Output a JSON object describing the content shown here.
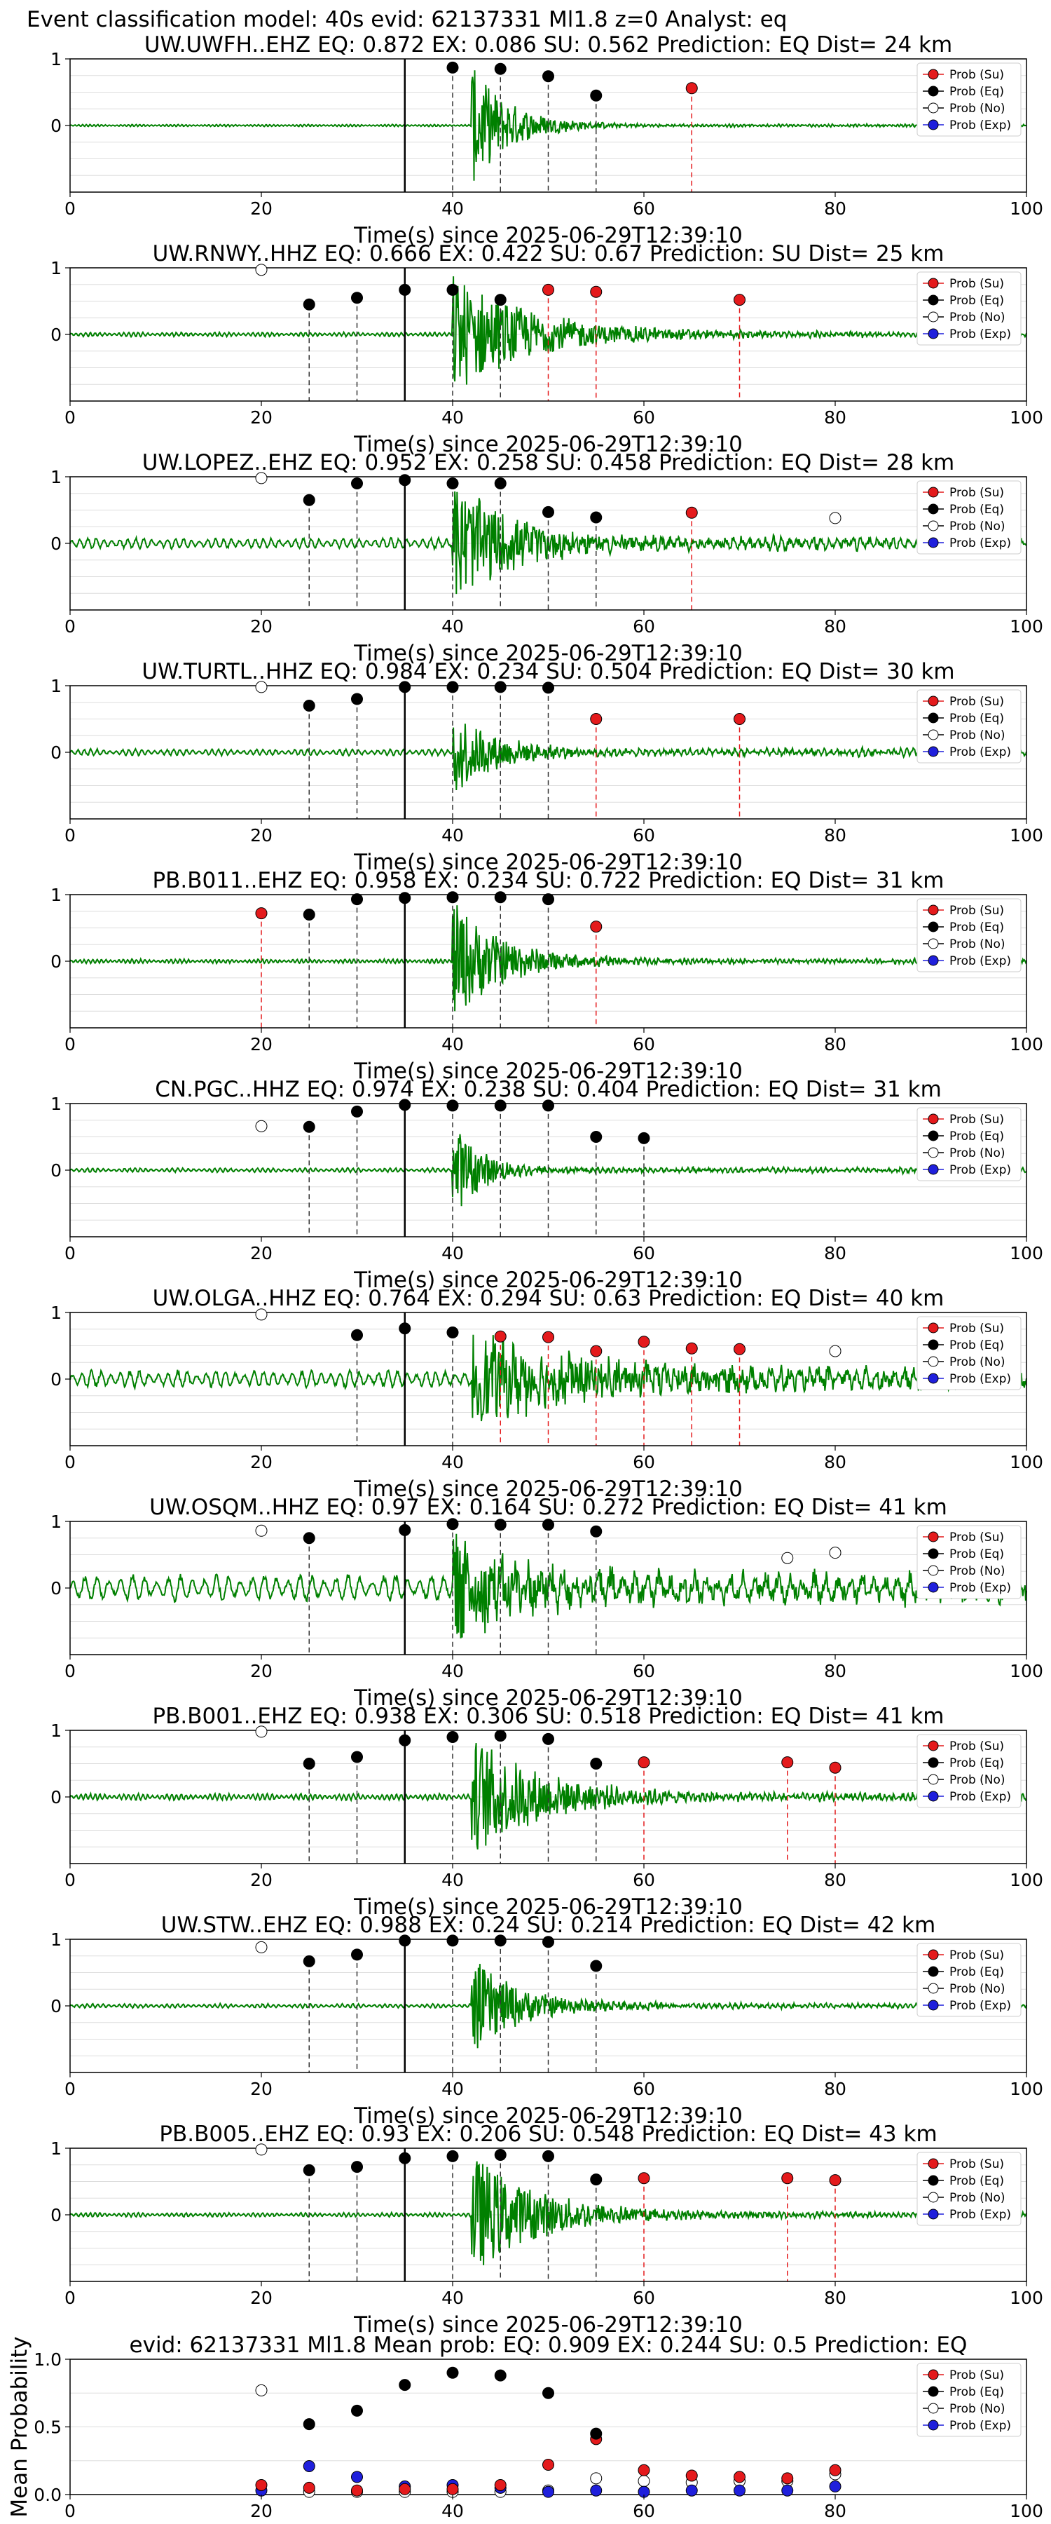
{
  "suptitle": "Event classification model: 40s evid: 62137331 Ml1.8 z=0 Analyst: eq",
  "colors": {
    "su": "#e41a1c",
    "eq": "#000000",
    "no": "#ffffff",
    "exp": "#1f1fdc",
    "waveform": "#008000",
    "grid": "#dddddd"
  },
  "legend_labels": [
    "Prob (Su)",
    "Prob (Eq)",
    "Prob (No)",
    "Prob (Exp)"
  ],
  "chart_data": [
    {
      "type": "line",
      "title": "UW.UWFH..EHZ   EQ: 0.872  EX: 0.086  SU: 0.562   Prediction: EQ    Dist= 24 km",
      "xlabel": "Time(s) since 2025-06-29T12:39:10",
      "xlim": [
        0,
        100
      ],
      "ylim": [
        -1,
        1
      ],
      "xticks": [
        "0",
        "20",
        "40",
        "60",
        "80",
        "100"
      ],
      "yticks": [
        "1",
        "0"
      ],
      "grid": true,
      "legend": "right",
      "p_arrival": 35,
      "signal_onset": 42,
      "noise_amp": 0.01,
      "signal_amp": 0.9,
      "decay": 4,
      "waveform_freq": 2.5,
      "eq_points": [
        [
          40,
          0.87
        ],
        [
          45,
          0.85
        ],
        [
          50,
          0.74
        ],
        [
          55,
          0.45
        ]
      ],
      "su_points": [
        [
          65,
          0.56
        ]
      ],
      "no_points": [],
      "exp_points": []
    },
    {
      "type": "line",
      "title": "UW.RNWY..HHZ   EQ: 0.666  EX: 0.422  SU: 0.67   Prediction: SU    Dist= 25 km",
      "xlabel": "Time(s) since 2025-06-29T12:39:10",
      "xlim": [
        0,
        100
      ],
      "ylim": [
        -1,
        1
      ],
      "xticks": [
        "0",
        "20",
        "40",
        "60",
        "80",
        "100"
      ],
      "yticks": [
        "1",
        "0"
      ],
      "grid": true,
      "legend": "right",
      "p_arrival": 35,
      "signal_onset": 40,
      "noise_amp": 0.02,
      "signal_amp": 0.9,
      "decay": 8,
      "waveform_freq": 2.0,
      "eq_points": [
        [
          25,
          0.45
        ],
        [
          30,
          0.55
        ],
        [
          35,
          0.67
        ],
        [
          40,
          0.67
        ],
        [
          45,
          0.52
        ]
      ],
      "su_points": [
        [
          50,
          0.67
        ],
        [
          55,
          0.64
        ],
        [
          70,
          0.52
        ]
      ],
      "no_points": [
        [
          20,
          0.97
        ]
      ],
      "exp_points": []
    },
    {
      "type": "line",
      "title": "UW.LOPEZ..EHZ   EQ: 0.952  EX: 0.258  SU: 0.458   Prediction: EQ    Dist= 28 km",
      "xlabel": "Time(s) since 2025-06-29T12:39:10",
      "xlim": [
        0,
        100
      ],
      "ylim": [
        -1,
        1
      ],
      "xticks": [
        "0",
        "20",
        "40",
        "60",
        "80",
        "100"
      ],
      "yticks": [
        "1",
        "0"
      ],
      "grid": true,
      "legend": "right",
      "p_arrival": 35,
      "signal_onset": 40,
      "noise_amp": 0.05,
      "signal_amp": 0.9,
      "decay": 6,
      "waveform_freq": 1.2,
      "eq_points": [
        [
          25,
          0.65
        ],
        [
          30,
          0.9
        ],
        [
          35,
          0.95
        ],
        [
          40,
          0.9
        ],
        [
          45,
          0.9
        ],
        [
          50,
          0.47
        ],
        [
          55,
          0.39
        ]
      ],
      "su_points": [
        [
          65,
          0.46
        ]
      ],
      "no_points": [
        [
          20,
          0.98
        ],
        [
          80,
          0.38
        ]
      ],
      "exp_points": []
    },
    {
      "type": "line",
      "title": "UW.TURTL..HHZ   EQ: 0.984  EX: 0.234  SU: 0.504   Prediction: EQ    Dist= 30 km",
      "xlabel": "Time(s) since 2025-06-29T12:39:10",
      "xlim": [
        0,
        100
      ],
      "ylim": [
        -1,
        1
      ],
      "xticks": [
        "0",
        "20",
        "40",
        "60",
        "80",
        "100"
      ],
      "yticks": [
        "1",
        "0"
      ],
      "grid": true,
      "legend": "right",
      "p_arrival": 35,
      "signal_onset": 40,
      "noise_amp": 0.03,
      "signal_amp": 0.7,
      "decay": 4,
      "waveform_freq": 1.5,
      "eq_points": [
        [
          25,
          0.7
        ],
        [
          30,
          0.8
        ],
        [
          35,
          0.98
        ],
        [
          40,
          0.98
        ],
        [
          45,
          0.98
        ],
        [
          50,
          0.97
        ]
      ],
      "su_points": [
        [
          55,
          0.5
        ],
        [
          70,
          0.5
        ]
      ],
      "no_points": [
        [
          20,
          0.98
        ]
      ],
      "exp_points": []
    },
    {
      "type": "line",
      "title": "PB.B011..EHZ   EQ: 0.958  EX: 0.234  SU: 0.722   Prediction: EQ    Dist= 31 km",
      "xlabel": "Time(s) since 2025-06-29T12:39:10",
      "xlim": [
        0,
        100
      ],
      "ylim": [
        -1,
        1
      ],
      "xticks": [
        "0",
        "20",
        "40",
        "60",
        "80",
        "100"
      ],
      "yticks": [
        "1",
        "0"
      ],
      "grid": true,
      "legend": "right",
      "p_arrival": 35,
      "signal_onset": 40,
      "noise_amp": 0.02,
      "signal_amp": 0.9,
      "decay": 5,
      "waveform_freq": 2.2,
      "eq_points": [
        [
          25,
          0.7
        ],
        [
          30,
          0.93
        ],
        [
          35,
          0.95
        ],
        [
          40,
          0.96
        ],
        [
          45,
          0.96
        ],
        [
          50,
          0.93
        ]
      ],
      "su_points": [
        [
          20,
          0.72
        ],
        [
          55,
          0.52
        ]
      ],
      "no_points": [],
      "exp_points": []
    },
    {
      "type": "line",
      "title": "CN.PGC..HHZ   EQ: 0.974  EX: 0.238  SU: 0.404   Prediction: EQ    Dist= 31 km",
      "xlabel": "Time(s) since 2025-06-29T12:39:10",
      "xlim": [
        0,
        100
      ],
      "ylim": [
        -1,
        1
      ],
      "xticks": [
        "0",
        "20",
        "40",
        "60",
        "80",
        "100"
      ],
      "yticks": [
        "1",
        "0"
      ],
      "grid": true,
      "legend": "right",
      "p_arrival": 35,
      "signal_onset": 40,
      "noise_amp": 0.02,
      "signal_amp": 0.7,
      "decay": 3,
      "waveform_freq": 1.8,
      "eq_points": [
        [
          25,
          0.65
        ],
        [
          30,
          0.88
        ],
        [
          35,
          0.98
        ],
        [
          40,
          0.97
        ],
        [
          45,
          0.97
        ],
        [
          50,
          0.97
        ],
        [
          55,
          0.5
        ],
        [
          60,
          0.48
        ]
      ],
      "su_points": [],
      "no_points": [
        [
          20,
          0.66
        ]
      ],
      "exp_points": []
    },
    {
      "type": "line",
      "title": "UW.OLGA..HHZ   EQ: 0.764  EX: 0.294  SU: 0.63   Prediction: EQ    Dist= 40 km",
      "xlabel": "Time(s) since 2025-06-29T12:39:10",
      "xlim": [
        0,
        100
      ],
      "ylim": [
        -1,
        1
      ],
      "xticks": [
        "0",
        "20",
        "40",
        "60",
        "80",
        "100"
      ],
      "yticks": [
        "1",
        "0"
      ],
      "grid": true,
      "legend": "right",
      "p_arrival": 35,
      "signal_onset": 42,
      "noise_amp": 0.08,
      "signal_amp": 0.6,
      "decay": 12,
      "waveform_freq": 1.0,
      "eq_points": [
        [
          30,
          0.66
        ],
        [
          35,
          0.76
        ],
        [
          40,
          0.7
        ]
      ],
      "su_points": [
        [
          45,
          0.64
        ],
        [
          50,
          0.63
        ],
        [
          55,
          0.42
        ],
        [
          60,
          0.56
        ],
        [
          65,
          0.46
        ],
        [
          70,
          0.45
        ]
      ],
      "no_points": [
        [
          20,
          0.97
        ],
        [
          80,
          0.42
        ]
      ],
      "exp_points": []
    },
    {
      "type": "line",
      "title": "UW.OSQM..HHZ   EQ: 0.97  EX: 0.164  SU: 0.272   Prediction: EQ    Dist= 41 km",
      "xlabel": "Time(s) since 2025-06-29T12:39:10",
      "xlim": [
        0,
        100
      ],
      "ylim": [
        -1,
        1
      ],
      "xticks": [
        "0",
        "20",
        "40",
        "60",
        "80",
        "100"
      ],
      "yticks": [
        "1",
        "0"
      ],
      "grid": true,
      "legend": "right",
      "p_arrival": 35,
      "signal_onset": 40,
      "noise_amp": 0.12,
      "signal_amp": 0.7,
      "decay": 6,
      "waveform_freq": 0.8,
      "eq_points": [
        [
          25,
          0.75
        ],
        [
          35,
          0.87
        ],
        [
          40,
          0.96
        ],
        [
          45,
          0.95
        ],
        [
          50,
          0.95
        ],
        [
          55,
          0.85
        ]
      ],
      "su_points": [],
      "no_points": [
        [
          20,
          0.86
        ],
        [
          75,
          0.45
        ],
        [
          80,
          0.53
        ]
      ],
      "exp_points": []
    },
    {
      "type": "line",
      "title": "PB.B001..EHZ   EQ: 0.938  EX: 0.306  SU: 0.518   Prediction: EQ    Dist= 41 km",
      "xlabel": "Time(s) since 2025-06-29T12:39:10",
      "xlim": [
        0,
        100
      ],
      "ylim": [
        -1,
        1
      ],
      "xticks": [
        "0",
        "20",
        "40",
        "60",
        "80",
        "100"
      ],
      "yticks": [
        "1",
        "0"
      ],
      "grid": true,
      "legend": "right",
      "p_arrival": 35,
      "signal_onset": 42,
      "noise_amp": 0.03,
      "signal_amp": 0.9,
      "decay": 7,
      "waveform_freq": 2.0,
      "eq_points": [
        [
          25,
          0.5
        ],
        [
          30,
          0.6
        ],
        [
          35,
          0.85
        ],
        [
          40,
          0.9
        ],
        [
          45,
          0.92
        ],
        [
          50,
          0.87
        ],
        [
          55,
          0.5
        ]
      ],
      "su_points": [
        [
          60,
          0.52
        ],
        [
          75,
          0.52
        ],
        [
          80,
          0.44
        ]
      ],
      "no_points": [
        [
          20,
          0.98
        ]
      ],
      "exp_points": []
    },
    {
      "type": "line",
      "title": "UW.STW..EHZ   EQ: 0.988  EX: 0.24  SU: 0.214   Prediction: EQ    Dist= 42 km",
      "xlabel": "Time(s) since 2025-06-29T12:39:10",
      "xlim": [
        0,
        100
      ],
      "ylim": [
        -1,
        1
      ],
      "xticks": [
        "0",
        "20",
        "40",
        "60",
        "80",
        "100"
      ],
      "yticks": [
        "1",
        "0"
      ],
      "grid": true,
      "legend": "right",
      "p_arrival": 35,
      "signal_onset": 42,
      "noise_amp": 0.02,
      "signal_amp": 0.7,
      "decay": 5,
      "waveform_freq": 1.8,
      "eq_points": [
        [
          25,
          0.67
        ],
        [
          30,
          0.77
        ],
        [
          35,
          0.98
        ],
        [
          40,
          0.98
        ],
        [
          45,
          0.98
        ],
        [
          50,
          0.96
        ],
        [
          55,
          0.6
        ]
      ],
      "su_points": [],
      "no_points": [
        [
          20,
          0.88
        ]
      ],
      "exp_points": []
    },
    {
      "type": "line",
      "title": "PB.B005..EHZ   EQ: 0.93  EX: 0.206  SU: 0.548   Prediction: EQ    Dist= 43 km",
      "xlabel": "Time(s) since 2025-06-29T12:39:10",
      "xlim": [
        0,
        100
      ],
      "ylim": [
        -1,
        1
      ],
      "xticks": [
        "0",
        "20",
        "40",
        "60",
        "80",
        "100"
      ],
      "yticks": [
        "1",
        "0"
      ],
      "grid": true,
      "legend": "right",
      "p_arrival": 35,
      "signal_onset": 42,
      "noise_amp": 0.02,
      "signal_amp": 0.9,
      "decay": 7,
      "waveform_freq": 2.0,
      "eq_points": [
        [
          25,
          0.67
        ],
        [
          30,
          0.72
        ],
        [
          35,
          0.85
        ],
        [
          40,
          0.88
        ],
        [
          45,
          0.9
        ],
        [
          50,
          0.88
        ],
        [
          55,
          0.53
        ]
      ],
      "su_points": [
        [
          60,
          0.55
        ],
        [
          75,
          0.55
        ],
        [
          80,
          0.52
        ]
      ],
      "no_points": [
        [
          20,
          0.98
        ]
      ],
      "exp_points": []
    },
    {
      "type": "scatter",
      "title": "evid: 62137331   Ml1.8    Mean prob:   EQ: 0.909   EX: 0.244   SU: 0.5    Prediction: EQ",
      "xlabel": "",
      "ylabel": "Mean Probability",
      "xlim": [
        0,
        100
      ],
      "ylim": [
        0,
        1
      ],
      "xticks": [
        "0",
        "20",
        "40",
        "60",
        "80",
        "100"
      ],
      "yticks": [
        "1.0",
        "0.5",
        "0.0"
      ],
      "grid": true,
      "legend": "right",
      "eq_points": [
        [
          25,
          0.52
        ],
        [
          30,
          0.62
        ],
        [
          35,
          0.81
        ],
        [
          40,
          0.9
        ],
        [
          45,
          0.88
        ],
        [
          50,
          0.75
        ],
        [
          55,
          0.45
        ]
      ],
      "su_points": [
        [
          20,
          0.07
        ],
        [
          25,
          0.05
        ],
        [
          30,
          0.03
        ],
        [
          35,
          0.04
        ],
        [
          40,
          0.04
        ],
        [
          45,
          0.07
        ],
        [
          50,
          0.22
        ],
        [
          55,
          0.41
        ],
        [
          60,
          0.18
        ],
        [
          65,
          0.14
        ],
        [
          70,
          0.13
        ],
        [
          75,
          0.12
        ],
        [
          80,
          0.18
        ]
      ],
      "no_points": [
        [
          20,
          0.77
        ],
        [
          25,
          0.02
        ],
        [
          30,
          0.02
        ],
        [
          35,
          0.02
        ],
        [
          40,
          0.02
        ],
        [
          45,
          0.02
        ],
        [
          50,
          0.03
        ],
        [
          55,
          0.12
        ],
        [
          60,
          0.1
        ],
        [
          65,
          0.09
        ],
        [
          70,
          0.1
        ],
        [
          75,
          0.1
        ],
        [
          80,
          0.15
        ]
      ],
      "exp_points": [
        [
          20,
          0.03
        ],
        [
          25,
          0.21
        ],
        [
          30,
          0.13
        ],
        [
          35,
          0.06
        ],
        [
          40,
          0.07
        ],
        [
          45,
          0.05
        ],
        [
          50,
          0.02
        ],
        [
          55,
          0.03
        ],
        [
          60,
          0.02
        ],
        [
          65,
          0.03
        ],
        [
          70,
          0.03
        ],
        [
          75,
          0.03
        ],
        [
          80,
          0.06
        ]
      ]
    }
  ]
}
